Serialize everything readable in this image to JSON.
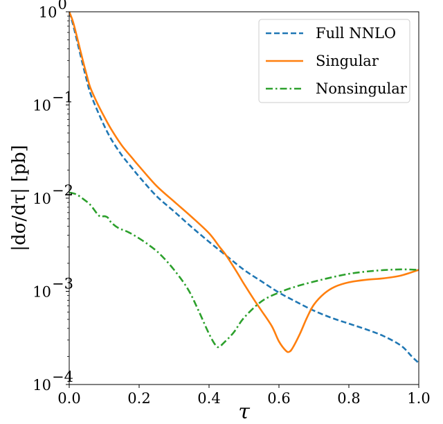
{
  "chart_data": {
    "type": "line",
    "xlabel": "τ",
    "ylabel": "|dσ/dτ| [pb]",
    "xlim": [
      0.0,
      1.0
    ],
    "ylim": [
      0.0001,
      1
    ],
    "yscale": "log",
    "grid": false,
    "legend_position": "top-right",
    "x_ticks": [
      {
        "value": 0.0,
        "label": "0.0"
      },
      {
        "value": 0.2,
        "label": "0.2"
      },
      {
        "value": 0.4,
        "label": "0.4"
      },
      {
        "value": 0.6,
        "label": "0.6"
      },
      {
        "value": 0.8,
        "label": "0.8"
      },
      {
        "value": 1.0,
        "label": "1.0"
      }
    ],
    "y_ticks": [
      {
        "value": 1,
        "base": "10",
        "exp": "0"
      },
      {
        "value": 0.1,
        "base": "10",
        "exp": "−1"
      },
      {
        "value": 0.01,
        "base": "10",
        "exp": "−2"
      },
      {
        "value": 0.001,
        "base": "10",
        "exp": "−3"
      },
      {
        "value": 0.0001,
        "base": "10",
        "exp": "−4"
      }
    ],
    "series": [
      {
        "name": "Full NNLO",
        "color": "#1f77b4",
        "style": "dashed",
        "points": [
          [
            0.0,
            1.0
          ],
          [
            0.01,
            0.75
          ],
          [
            0.02,
            0.53
          ],
          [
            0.03,
            0.37
          ],
          [
            0.04,
            0.26
          ],
          [
            0.05,
            0.185
          ],
          [
            0.06,
            0.135
          ],
          [
            0.08,
            0.088
          ],
          [
            0.1,
            0.06
          ],
          [
            0.12,
            0.043
          ],
          [
            0.15,
            0.029
          ],
          [
            0.18,
            0.021
          ],
          [
            0.2,
            0.017
          ],
          [
            0.25,
            0.0105
          ],
          [
            0.3,
            0.0072
          ],
          [
            0.35,
            0.0049
          ],
          [
            0.4,
            0.0034
          ],
          [
            0.45,
            0.0024
          ],
          [
            0.5,
            0.0017
          ],
          [
            0.55,
            0.00128
          ],
          [
            0.6,
            0.00097
          ],
          [
            0.65,
            0.00077
          ],
          [
            0.7,
            0.00062
          ],
          [
            0.75,
            0.00052
          ],
          [
            0.8,
            0.00045
          ],
          [
            0.85,
            0.00039
          ],
          [
            0.9,
            0.00033
          ],
          [
            0.95,
            0.00026
          ],
          [
            0.98,
            0.0002
          ],
          [
            1.0,
            0.00017
          ]
        ]
      },
      {
        "name": "Singular",
        "color": "#ff7f0e",
        "style": "solid",
        "points": [
          [
            0.0,
            1.0
          ],
          [
            0.01,
            0.8
          ],
          [
            0.02,
            0.58
          ],
          [
            0.03,
            0.41
          ],
          [
            0.04,
            0.29
          ],
          [
            0.05,
            0.21
          ],
          [
            0.06,
            0.155
          ],
          [
            0.08,
            0.105
          ],
          [
            0.1,
            0.075
          ],
          [
            0.12,
            0.055
          ],
          [
            0.15,
            0.037
          ],
          [
            0.18,
            0.027
          ],
          [
            0.2,
            0.022
          ],
          [
            0.25,
            0.0135
          ],
          [
            0.3,
            0.0092
          ],
          [
            0.35,
            0.0063
          ],
          [
            0.4,
            0.0042
          ],
          [
            0.43,
            0.003
          ],
          [
            0.45,
            0.0024
          ],
          [
            0.48,
            0.0016
          ],
          [
            0.5,
            0.0012
          ],
          [
            0.53,
            0.0008
          ],
          [
            0.55,
            0.00062
          ],
          [
            0.58,
            0.00042
          ],
          [
            0.6,
            0.00029
          ],
          [
            0.62,
            0.00023
          ],
          [
            0.63,
            0.000225
          ],
          [
            0.64,
            0.00025
          ],
          [
            0.66,
            0.00035
          ],
          [
            0.68,
            0.00052
          ],
          [
            0.7,
            0.00072
          ],
          [
            0.73,
            0.00095
          ],
          [
            0.76,
            0.00112
          ],
          [
            0.8,
            0.00125
          ],
          [
            0.85,
            0.00133
          ],
          [
            0.9,
            0.00138
          ],
          [
            0.95,
            0.00148
          ],
          [
            1.0,
            0.0017
          ]
        ]
      },
      {
        "name": "Nonsingular",
        "color": "#2ca02c",
        "style": "dashdot",
        "points": [
          [
            0.0,
            0.0115
          ],
          [
            0.02,
            0.011
          ],
          [
            0.04,
            0.0098
          ],
          [
            0.06,
            0.0085
          ],
          [
            0.08,
            0.0068
          ],
          [
            0.09,
            0.0063
          ],
          [
            0.1,
            0.0064
          ],
          [
            0.11,
            0.0062
          ],
          [
            0.12,
            0.0055
          ],
          [
            0.14,
            0.0048
          ],
          [
            0.17,
            0.0043
          ],
          [
            0.2,
            0.0037
          ],
          [
            0.23,
            0.0031
          ],
          [
            0.26,
            0.0025
          ],
          [
            0.3,
            0.0017
          ],
          [
            0.34,
            0.00105
          ],
          [
            0.37,
            0.00062
          ],
          [
            0.4,
            0.00035
          ],
          [
            0.42,
            0.00026
          ],
          [
            0.43,
            0.000255
          ],
          [
            0.44,
            0.000275
          ],
          [
            0.47,
            0.00036
          ],
          [
            0.5,
            0.00052
          ],
          [
            0.55,
            0.00078
          ],
          [
            0.6,
            0.00097
          ],
          [
            0.65,
            0.00113
          ],
          [
            0.7,
            0.00127
          ],
          [
            0.75,
            0.00141
          ],
          [
            0.8,
            0.00154
          ],
          [
            0.85,
            0.00163
          ],
          [
            0.9,
            0.00169
          ],
          [
            0.95,
            0.00172
          ],
          [
            1.0,
            0.0017
          ]
        ]
      }
    ]
  }
}
